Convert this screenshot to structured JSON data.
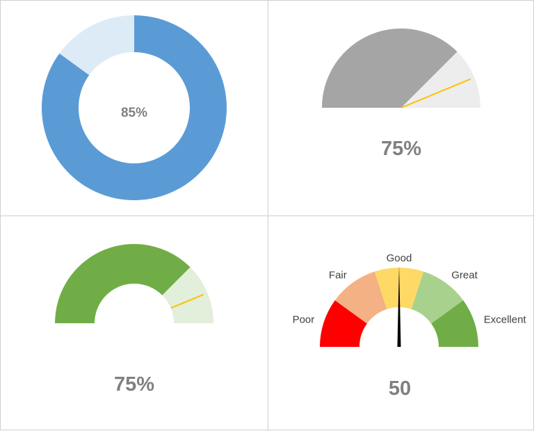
{
  "chart_data": [
    {
      "type": "pie",
      "subtype": "donut",
      "title": "",
      "value_label": "85%",
      "slices": [
        {
          "label": "",
          "value": 85,
          "color": "#5b9bd5"
        },
        {
          "label": "",
          "value": 15,
          "color": "#ddebf7"
        }
      ]
    },
    {
      "type": "pie",
      "subtype": "half-pie-gauge",
      "title": "",
      "value_label": "75%",
      "value": 75,
      "max": 100,
      "colors": {
        "filled": "#a5a5a5",
        "remaining": "#ededed",
        "needle": "#ffc000"
      }
    },
    {
      "type": "pie",
      "subtype": "half-donut-gauge",
      "title": "",
      "value_label": "75%",
      "value": 75,
      "max": 100,
      "colors": {
        "filled": "#70ad47",
        "remaining": "#e2efda",
        "needle": "#ffc000"
      }
    },
    {
      "type": "pie",
      "subtype": "speedometer",
      "title": "",
      "value_label": "50",
      "value": 50,
      "max": 100,
      "bands": [
        {
          "label": "Poor",
          "value": 20,
          "color": "#ff0000"
        },
        {
          "label": "Fair",
          "value": 20,
          "color": "#f4b183"
        },
        {
          "label": "Good",
          "value": 20,
          "color": "#ffd966"
        },
        {
          "label": "Great",
          "value": 20,
          "color": "#a9d18e"
        },
        {
          "label": "Excellent",
          "value": 20,
          "color": "#70ad47"
        }
      ],
      "colors": {
        "needle": "#000000"
      }
    }
  ]
}
